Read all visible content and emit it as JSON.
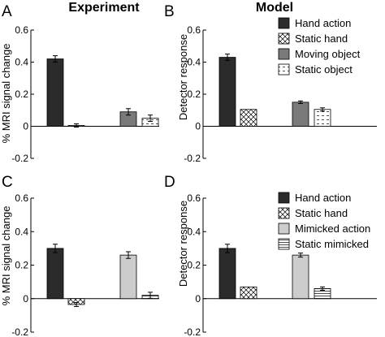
{
  "column_titles": [
    "Experiment",
    "Model"
  ],
  "patterns": {
    "dark": "#2b2b2b",
    "medium": "#7a7a7a",
    "light": "#cccccc",
    "crosshatch_color": "#000000",
    "dashed_color": "#000000",
    "hstripes_color": "#000000"
  },
  "chart_data": [
    {
      "panel": "A",
      "type": "bar",
      "column": "Experiment",
      "title": "",
      "ylabel": "% MRI signal change",
      "xlabel": "",
      "ylim": [
        -0.2,
        0.6
      ],
      "yticks": [
        -0.2,
        0,
        0.2,
        0.4,
        0.6
      ],
      "ytick_labels": [
        "-0.2",
        "0",
        "0.2",
        "0.4",
        "0.6"
      ],
      "categories": [
        "Hand action",
        "Static hand",
        "Moving object",
        "Static object"
      ],
      "values": [
        0.42,
        0.005,
        0.09,
        0.05
      ],
      "errors": [
        0.02,
        0.01,
        0.02,
        0.02
      ],
      "fills": [
        "dark",
        "crosshatch",
        "medium",
        "dashed"
      ],
      "legend": false
    },
    {
      "panel": "B",
      "type": "bar",
      "column": "Model",
      "title": "",
      "ylabel": "Detector response",
      "xlabel": "",
      "ylim": [
        -0.2,
        0.6
      ],
      "yticks": [
        -0.2,
        0,
        0.2,
        0.4,
        0.6
      ],
      "ytick_labels": [
        "-0.2",
        "0",
        "0.2",
        "0.4",
        "0.6"
      ],
      "categories": [
        "Hand action",
        "Static hand",
        "Moving object",
        "Static object"
      ],
      "values": [
        0.43,
        0.105,
        0.15,
        0.105
      ],
      "errors": [
        0.02,
        0.0,
        0.008,
        0.01
      ],
      "fills": [
        "dark",
        "crosshatch",
        "medium",
        "dashed"
      ],
      "legend": true,
      "legend_position": "top-right"
    },
    {
      "panel": "C",
      "type": "bar",
      "column": "Experiment",
      "title": "",
      "ylabel": "% MRI signal change",
      "xlabel": "",
      "ylim": [
        -0.2,
        0.6
      ],
      "yticks": [
        -0.2,
        0,
        0.2,
        0.4,
        0.6
      ],
      "ytick_labels": [
        "-0.2",
        "0",
        "0.2",
        "0.4",
        "0.6"
      ],
      "categories": [
        "Hand action",
        "Static hand",
        "Mimicked action",
        "Static mimicked"
      ],
      "values": [
        0.3,
        -0.035,
        0.26,
        0.02
      ],
      "errors": [
        0.025,
        0.012,
        0.02,
        0.018
      ],
      "fills": [
        "dark",
        "crosshatch",
        "light",
        "hstripes"
      ],
      "legend": false
    },
    {
      "panel": "D",
      "type": "bar",
      "column": "Model",
      "title": "",
      "ylabel": "Detector response",
      "xlabel": "",
      "ylim": [
        -0.2,
        0.6
      ],
      "yticks": [
        -0.2,
        0,
        0.2,
        0.4,
        0.6
      ],
      "ytick_labels": [
        "-0.2",
        "0",
        "0.2",
        "0.4",
        "0.6"
      ],
      "categories": [
        "Hand action",
        "Static hand",
        "Mimicked action",
        "Static mimicked"
      ],
      "values": [
        0.3,
        0.07,
        0.26,
        0.06
      ],
      "errors": [
        0.025,
        0.0,
        0.012,
        0.01
      ],
      "fills": [
        "dark",
        "crosshatch",
        "light",
        "hstripes"
      ],
      "legend": true,
      "legend_position": "top-right"
    }
  ]
}
